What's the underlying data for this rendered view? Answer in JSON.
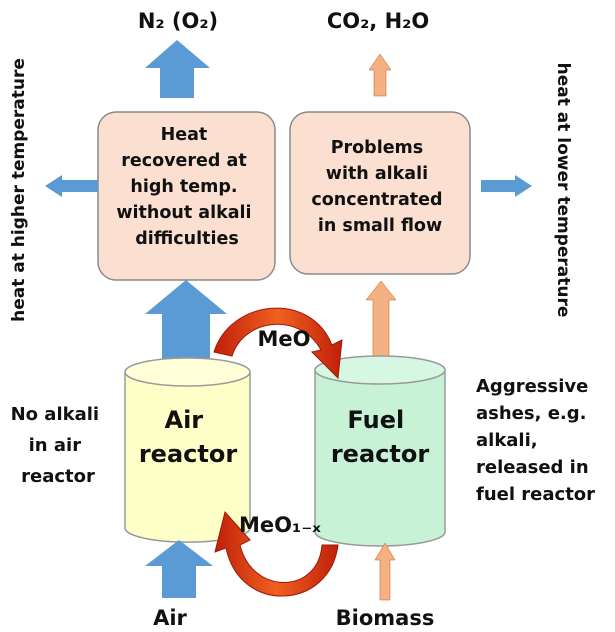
{
  "outputs": {
    "air_side": "N₂ (O₂)",
    "fuel_side": "CO₂, H₂O"
  },
  "boxes": [
    {
      "lines": [
        "Heat",
        "recovered at",
        "high temp.",
        "without alkali",
        "difficulties"
      ]
    },
    {
      "lines": [
        "Problems",
        "with alkali",
        "concentrated",
        "in small flow"
      ]
    }
  ],
  "side_labels": {
    "left": "heat at higher temperature",
    "right": "heat at lower temperature"
  },
  "flows": {
    "oxidized": "MeO",
    "reduced": "MeO₁₋ₓ"
  },
  "reactors": [
    {
      "lines": [
        "Air",
        "reactor"
      ]
    },
    {
      "lines": [
        "Fuel",
        "reactor"
      ]
    }
  ],
  "notes": {
    "left": [
      "No alkali",
      "in air",
      "reactor"
    ],
    "right": [
      "Aggressive",
      "ashes, e.g.",
      "alkali,",
      "released in",
      "fuel reactor"
    ]
  },
  "inputs": {
    "air": "Air",
    "fuel": "Biomass"
  }
}
